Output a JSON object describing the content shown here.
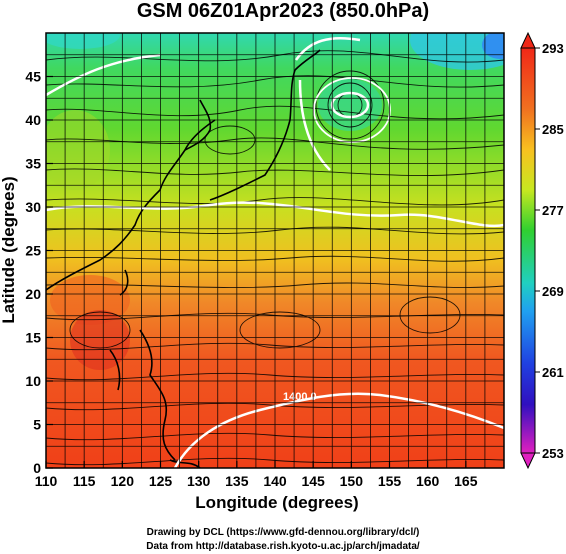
{
  "title": "GSM 06Z01Apr2023 (850.0hPa)",
  "x_axis": {
    "label": "Longitude (degrees)",
    "ticks": [
      "110",
      "115",
      "120",
      "125",
      "130",
      "135",
      "140",
      "145",
      "150",
      "155",
      "160",
      "165"
    ]
  },
  "y_axis": {
    "label": "Latitude (degrees)",
    "ticks": [
      "0",
      "5",
      "10",
      "15",
      "20",
      "25",
      "30",
      "35",
      "40",
      "45"
    ]
  },
  "map": {
    "lon_range": [
      110,
      170
    ],
    "lat_range": [
      0,
      50
    ],
    "grid_step_degrees": 2.5,
    "contour_label": "1400.0"
  },
  "colorbar": {
    "labels": [
      "293",
      "285",
      "277",
      "269",
      "261",
      "253"
    ],
    "colors": [
      "#f03018",
      "#f7a020",
      "#e8e020",
      "#20c040",
      "#20c8e0",
      "#2040e0",
      "#e020c0"
    ]
  },
  "credits": {
    "line1": "Drawing by DCL (https://www.gfd-dennou.org/library/dcl/)",
    "line2": "Data from http://database.rish.kyoto-u.ac.jp/arch/jmadata/"
  }
}
